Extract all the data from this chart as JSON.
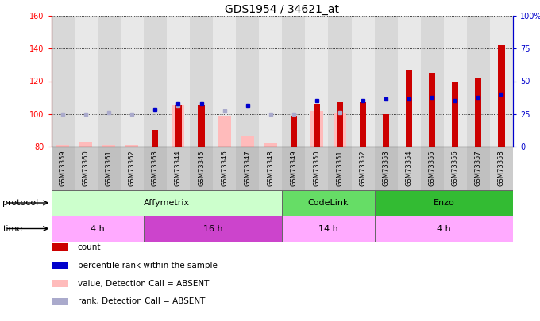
{
  "title": "GDS1954 / 34621_at",
  "samples": [
    "GSM73359",
    "GSM73360",
    "GSM73361",
    "GSM73362",
    "GSM73363",
    "GSM73344",
    "GSM73345",
    "GSM73346",
    "GSM73347",
    "GSM73348",
    "GSM73349",
    "GSM73350",
    "GSM73351",
    "GSM73352",
    "GSM73353",
    "GSM73354",
    "GSM73355",
    "GSM73356",
    "GSM73357",
    "GSM73358"
  ],
  "count_red": [
    null,
    null,
    null,
    null,
    90,
    105,
    105,
    null,
    null,
    null,
    99,
    106,
    107,
    107,
    100,
    127,
    125,
    120,
    122,
    142
  ],
  "count_pink": [
    81,
    83,
    81,
    81,
    null,
    105,
    null,
    99,
    87,
    82,
    null,
    102,
    101,
    null,
    null,
    null,
    null,
    null,
    null,
    null
  ],
  "rank_blue": [
    null,
    null,
    null,
    null,
    103,
    106,
    106,
    null,
    105,
    null,
    null,
    108,
    null,
    108,
    109,
    109,
    110,
    108,
    110,
    112
  ],
  "rank_lblue": [
    100,
    100,
    101,
    100,
    null,
    105,
    null,
    102,
    null,
    100,
    100,
    null,
    101,
    null,
    null,
    null,
    null,
    null,
    null,
    null
  ],
  "ylim_left": [
    80,
    160
  ],
  "ylim_right": [
    0,
    100
  ],
  "left_ticks": [
    80,
    100,
    120,
    140,
    160
  ],
  "right_ticks": [
    0,
    25,
    50,
    75,
    100
  ],
  "right_tick_labels": [
    "0",
    "25",
    "50",
    "75",
    "100%"
  ],
  "col_red": "#cc0000",
  "col_pink": "#ffbbbb",
  "col_blue": "#0000cc",
  "col_lblue": "#aaaacc",
  "bg_color": "#ffffff",
  "col_bg_even": "#d8d8d8",
  "col_bg_odd": "#e8e8e8",
  "protocol_groups": [
    {
      "label": "Affymetrix",
      "start": 0,
      "end": 9,
      "color": "#ccffcc"
    },
    {
      "label": "CodeLink",
      "start": 10,
      "end": 13,
      "color": "#66dd66"
    },
    {
      "label": "Enzo",
      "start": 14,
      "end": 19,
      "color": "#33bb33"
    }
  ],
  "time_groups": [
    {
      "label": "4 h",
      "start": 0,
      "end": 3,
      "color": "#ffaaff"
    },
    {
      "label": "16 h",
      "start": 4,
      "end": 9,
      "color": "#cc44cc"
    },
    {
      "label": "14 h",
      "start": 10,
      "end": 13,
      "color": "#ffaaff"
    },
    {
      "label": "4 h",
      "start": 14,
      "end": 19,
      "color": "#ffaaff"
    }
  ],
  "legend_items": [
    {
      "label": "count",
      "color": "#cc0000"
    },
    {
      "label": "percentile rank within the sample",
      "color": "#0000cc"
    },
    {
      "label": "value, Detection Call = ABSENT",
      "color": "#ffbbbb"
    },
    {
      "label": "rank, Detection Call = ABSENT",
      "color": "#aaaacc"
    }
  ]
}
